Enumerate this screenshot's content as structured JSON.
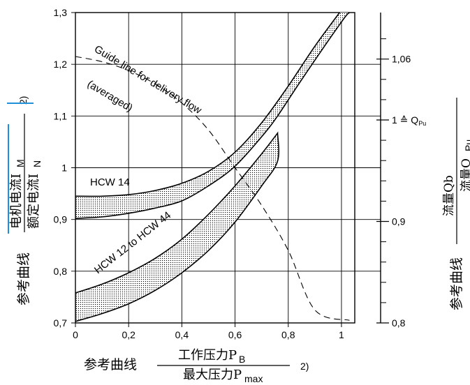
{
  "chart_data": {
    "type": "line",
    "x_axis": {
      "label_prefix": "参考曲线",
      "numerator": "工作压力P",
      "numerator_sub": "B",
      "denominator": "最大压力P",
      "denominator_sub": "max",
      "footnote": "2)",
      "range": [
        0,
        1.05
      ],
      "ticks": [
        {
          "v": 0,
          "t": "0"
        },
        {
          "v": 0.2,
          "t": "0,2"
        },
        {
          "v": 0.4,
          "t": "0,4"
        },
        {
          "v": 0.6,
          "t": "0,6"
        },
        {
          "v": 0.8,
          "t": "0,8"
        },
        {
          "v": 1.0,
          "t": "1"
        }
      ]
    },
    "y_left": {
      "label_prefix": "参考曲线",
      "numerator": "电机电流I",
      "numerator_sub": "M",
      "denominator": "额定电流I",
      "denominator_sub": "N",
      "footnote": "2)",
      "range": [
        0.7,
        1.3
      ],
      "ticks": [
        {
          "v": 0.7,
          "t": "0,7"
        },
        {
          "v": 0.8,
          "t": "0,8"
        },
        {
          "v": 0.9,
          "t": "0,9"
        },
        {
          "v": 1.0,
          "t": "1"
        },
        {
          "v": 1.1,
          "t": "1,1"
        },
        {
          "v": 1.2,
          "t": "1,2"
        },
        {
          "v": 1.3,
          "t": "1,3"
        }
      ]
    },
    "y_right": {
      "label_prefix": "参考曲线",
      "numerator": "流量Qb",
      "denominator": "流量Q",
      "denominator_sub": "Pu",
      "ticks": [
        {
          "v": 0.8,
          "t": "0,8"
        },
        {
          "v": 0.9,
          "t": "0,9"
        },
        {
          "v": 1.0,
          "t": "1 ≙ Q",
          "sub": "Pu"
        },
        {
          "v": 1.06,
          "t": "1,06"
        }
      ],
      "minor_ticks": [
        0.82,
        0.84,
        0.86,
        0.88,
        0.92,
        0.94,
        0.96,
        0.98,
        1.02,
        1.04,
        1.08
      ]
    },
    "series": [
      {
        "name": "HCW 14",
        "upper": [
          [
            0,
            0.945
          ],
          [
            0.1,
            0.945
          ],
          [
            0.2,
            0.948
          ],
          [
            0.3,
            0.956
          ],
          [
            0.4,
            0.97
          ],
          [
            0.5,
            0.993
          ],
          [
            0.6,
            1.03
          ],
          [
            0.7,
            1.087
          ],
          [
            0.8,
            1.158
          ],
          [
            0.9,
            1.235
          ],
          [
            1.0,
            1.305
          ]
        ],
        "lower": [
          [
            0,
            0.902
          ],
          [
            0.1,
            0.905
          ],
          [
            0.2,
            0.912
          ],
          [
            0.3,
            0.922
          ],
          [
            0.4,
            0.936
          ],
          [
            0.5,
            0.965
          ],
          [
            0.6,
            1.003
          ],
          [
            0.7,
            1.06
          ],
          [
            0.76,
            1.1
          ],
          [
            0.85,
            1.17
          ],
          [
            1.0,
            1.282
          ],
          [
            1.03,
            1.3
          ]
        ]
      },
      {
        "name": "HCW 12 to HCW 44",
        "upper": [
          [
            0,
            0.758
          ],
          [
            0.1,
            0.775
          ],
          [
            0.2,
            0.797
          ],
          [
            0.3,
            0.825
          ],
          [
            0.4,
            0.862
          ],
          [
            0.5,
            0.91
          ],
          [
            0.6,
            0.965
          ],
          [
            0.7,
            1.027
          ],
          [
            0.76,
            1.067
          ]
        ],
        "lower": [
          [
            0,
            0.703
          ],
          [
            0.1,
            0.718
          ],
          [
            0.2,
            0.737
          ],
          [
            0.3,
            0.763
          ],
          [
            0.4,
            0.797
          ],
          [
            0.5,
            0.84
          ],
          [
            0.6,
            0.895
          ],
          [
            0.7,
            0.965
          ],
          [
            0.76,
            1.013
          ],
          [
            0.76,
            1.067
          ]
        ]
      }
    ],
    "guide_line": {
      "label_line1": "Guide line for delivery flow",
      "label_line2": "(averaged)",
      "points": [
        [
          0,
          1.215
        ],
        [
          0.1,
          1.205
        ],
        [
          0.2,
          1.188
        ],
        [
          0.3,
          1.162
        ],
        [
          0.4,
          1.125
        ],
        [
          0.5,
          1.073
        ],
        [
          0.6,
          1.0
        ],
        [
          0.7,
          0.927
        ],
        [
          0.8,
          0.84
        ],
        [
          0.9,
          0.725
        ],
        [
          1.0,
          0.76
        ],
        [
          1.03,
          0.705
        ]
      ]
    }
  }
}
